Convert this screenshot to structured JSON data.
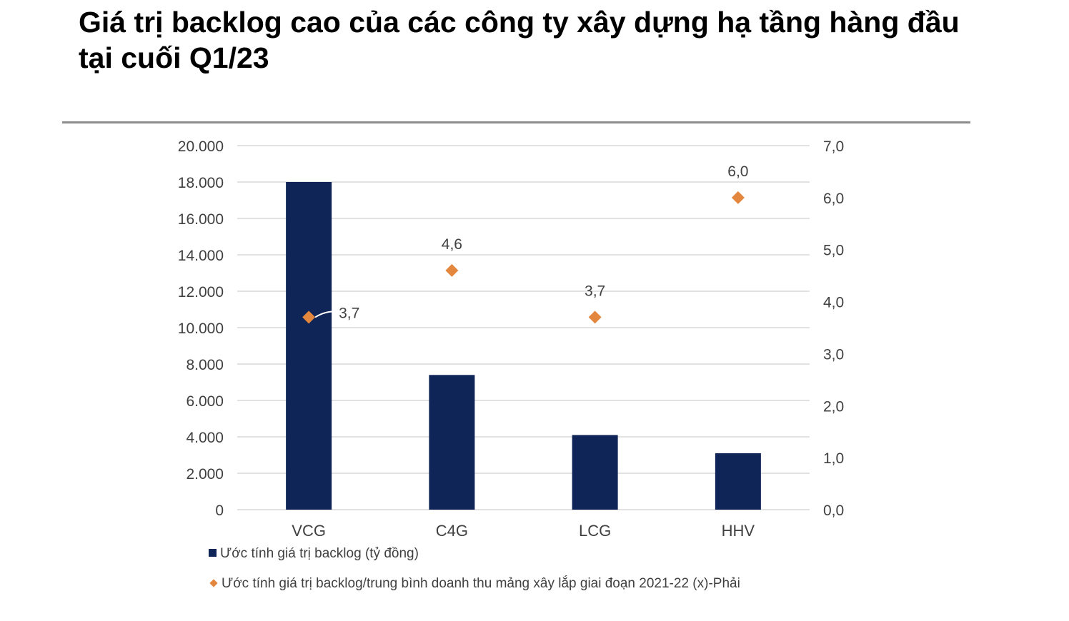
{
  "title": "Giá trị backlog cao của các công ty xây dựng hạ tầng hàng đầu tại cuối Q1/23",
  "colors": {
    "bar": "#0f2557",
    "marker": "#e4873e",
    "grid": "#d9d9d9",
    "axis_text": "#404040",
    "rule": "#8c8c8c"
  },
  "chart_data": {
    "type": "bar",
    "categories": [
      "VCG",
      "C4G",
      "LCG",
      "HHV"
    ],
    "series": [
      {
        "name": "Ước tính giá trị backlog (tỷ đồng)",
        "type": "bar",
        "axis": "left",
        "values": [
          18000,
          7400,
          4100,
          3100
        ]
      },
      {
        "name": "Ước tính giá trị backlog/trung bình doanh thu mảng xây lắp giai đoạn 2021-22 (x)-Phải",
        "type": "scatter",
        "marker": "diamond",
        "axis": "right",
        "values": [
          3.7,
          4.6,
          3.7,
          6.0
        ],
        "data_labels": [
          "3,7",
          "4,6",
          "3,7",
          "6,0"
        ]
      }
    ],
    "y_left": {
      "ylim": [
        0,
        20000
      ],
      "ticks": [
        0,
        2000,
        4000,
        6000,
        8000,
        10000,
        12000,
        14000,
        16000,
        18000,
        20000
      ],
      "tick_labels": [
        "0",
        "2.000",
        "4.000",
        "6.000",
        "8.000",
        "10.000",
        "12.000",
        "14.000",
        "16.000",
        "18.000",
        "20.000"
      ]
    },
    "y_right": {
      "ylim": [
        0,
        7
      ],
      "ticks": [
        0,
        1,
        2,
        3,
        4,
        5,
        6,
        7
      ],
      "tick_labels": [
        "0,0",
        "1,0",
        "2,0",
        "3,0",
        "4,0",
        "5,0",
        "6,0",
        "7,0"
      ]
    },
    "grid": true,
    "legend_position": "bottom-left"
  }
}
